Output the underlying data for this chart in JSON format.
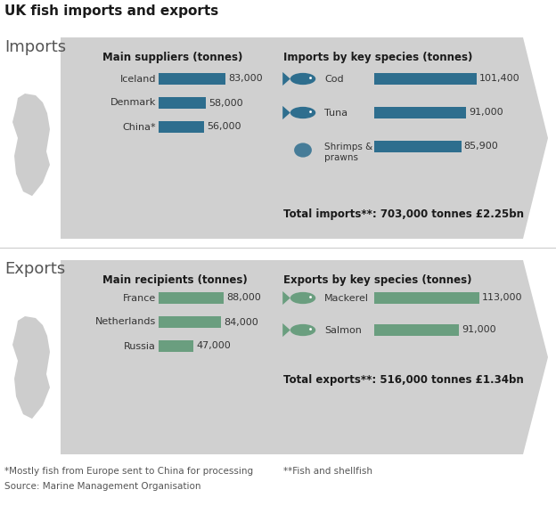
{
  "title": "UK fish imports and exports",
  "bg_color": "#ffffff",
  "imports_color": "#2e6e8e",
  "exports_color": "#6a9e7f",
  "imports_label": "Imports",
  "exports_label": "Exports",
  "imports_suppliers_title": "Main suppliers (tonnes)",
  "imports_species_title": "Imports by key species (tonnes)",
  "exports_recipients_title": "Main recipients (tonnes)",
  "exports_species_title": "Exports by key species (tonnes)",
  "import_suppliers": [
    "Iceland",
    "Denmark",
    "China*"
  ],
  "import_supplier_vals": [
    83000,
    58000,
    56000
  ],
  "import_supplier_labels": [
    "83,000",
    "58,000",
    "56,000"
  ],
  "import_species": [
    "Cod",
    "Tuna",
    "Shrimps &\nprawns"
  ],
  "import_species_vals": [
    101400,
    91000,
    85900
  ],
  "import_species_labels": [
    "101,400",
    "91,000",
    "85,900"
  ],
  "import_total": "Total imports**: 703,000 tonnes £2.25bn",
  "export_recipients": [
    "France",
    "Netherlands",
    "Russia"
  ],
  "export_recipient_vals": [
    88000,
    84000,
    47000
  ],
  "export_recipient_labels": [
    "88,000",
    "84,000",
    "47,000"
  ],
  "export_species": [
    "Mackerel",
    "Salmon"
  ],
  "export_species_vals": [
    113000,
    91000
  ],
  "export_species_labels": [
    "113,000",
    "91,000"
  ],
  "export_total": "Total exports**: 516,000 tonnes £1.34bn",
  "footnote1": "*Mostly fish from Europe sent to China for processing",
  "footnote2": "**Fish and shellfish",
  "source": "Source: Marine Management Organisation",
  "max_import_val": 110000,
  "max_export_val": 120000,
  "arrow_color": "#d0d0d0",
  "map_color": "#b8b8b8",
  "section_label_color": "#555555",
  "text_color": "#1a1a1a",
  "footnote_color": "#555555"
}
